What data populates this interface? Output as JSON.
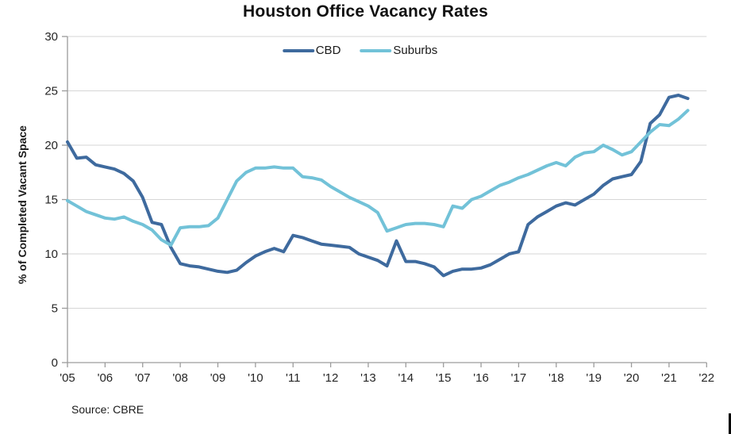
{
  "chart_data": {
    "type": "line",
    "title": "Houston Office Vacancy Rates",
    "ylabel": "% of Completed Vacant Space",
    "xlabel": "",
    "source_note": "Source: CBRE",
    "frequency": "quarterly",
    "x_start": "2005 Q1",
    "x_end": "2021 Q3",
    "x_tick_labels": [
      "'05",
      "'06",
      "'07",
      "'08",
      "'09",
      "'10",
      "'11",
      "'12",
      "'13",
      "'14",
      "'15",
      "'16",
      "'17",
      "'18",
      "'19",
      "'20",
      "'21",
      "'22"
    ],
    "y_ticks": [
      0,
      5,
      10,
      15,
      20,
      25,
      30
    ],
    "ylim": [
      0,
      30
    ],
    "grid": "horizontal",
    "legend_position": "top-center-inside",
    "series": [
      {
        "name": "CBD",
        "color": "#3E6A9E",
        "values": [
          20.3,
          18.8,
          18.9,
          18.2,
          18.0,
          17.8,
          17.4,
          16.7,
          15.2,
          12.9,
          12.7,
          10.6,
          9.1,
          8.9,
          8.8,
          8.6,
          8.4,
          8.3,
          8.5,
          9.2,
          9.8,
          10.2,
          10.5,
          10.2,
          11.7,
          11.5,
          11.2,
          10.9,
          10.8,
          10.7,
          10.6,
          10.0,
          9.7,
          9.4,
          8.9,
          11.2,
          9.3,
          9.3,
          9.1,
          8.8,
          8.0,
          8.4,
          8.6,
          8.6,
          8.7,
          9.0,
          9.5,
          10.0,
          10.2,
          12.7,
          13.4,
          13.9,
          14.4,
          14.7,
          14.5,
          15.0,
          15.5,
          16.3,
          16.9,
          17.1,
          17.3,
          18.5,
          22.0,
          22.8,
          24.4,
          24.6,
          24.3
        ]
      },
      {
        "name": "Suburbs",
        "color": "#72C2D8",
        "values": [
          14.9,
          14.4,
          13.9,
          13.6,
          13.3,
          13.2,
          13.4,
          13.0,
          12.7,
          12.2,
          11.3,
          10.8,
          12.4,
          12.5,
          12.5,
          12.6,
          13.3,
          15.0,
          16.7,
          17.5,
          17.9,
          17.9,
          18.0,
          17.9,
          17.9,
          17.1,
          17.0,
          16.8,
          16.2,
          15.7,
          15.2,
          14.8,
          14.4,
          13.8,
          12.1,
          12.4,
          12.7,
          12.8,
          12.8,
          12.7,
          12.5,
          14.4,
          14.2,
          15.0,
          15.3,
          15.8,
          16.3,
          16.6,
          17.0,
          17.3,
          17.7,
          18.1,
          18.4,
          18.1,
          18.9,
          19.3,
          19.4,
          20.0,
          19.6,
          19.1,
          19.4,
          20.3,
          21.2,
          21.9,
          21.8,
          22.4,
          23.2
        ]
      }
    ],
    "colors": {
      "gridline": "#D6D6D6",
      "axis": "#9C9C9C",
      "tick_text": "#262626",
      "background": "#FFFFFF"
    }
  }
}
